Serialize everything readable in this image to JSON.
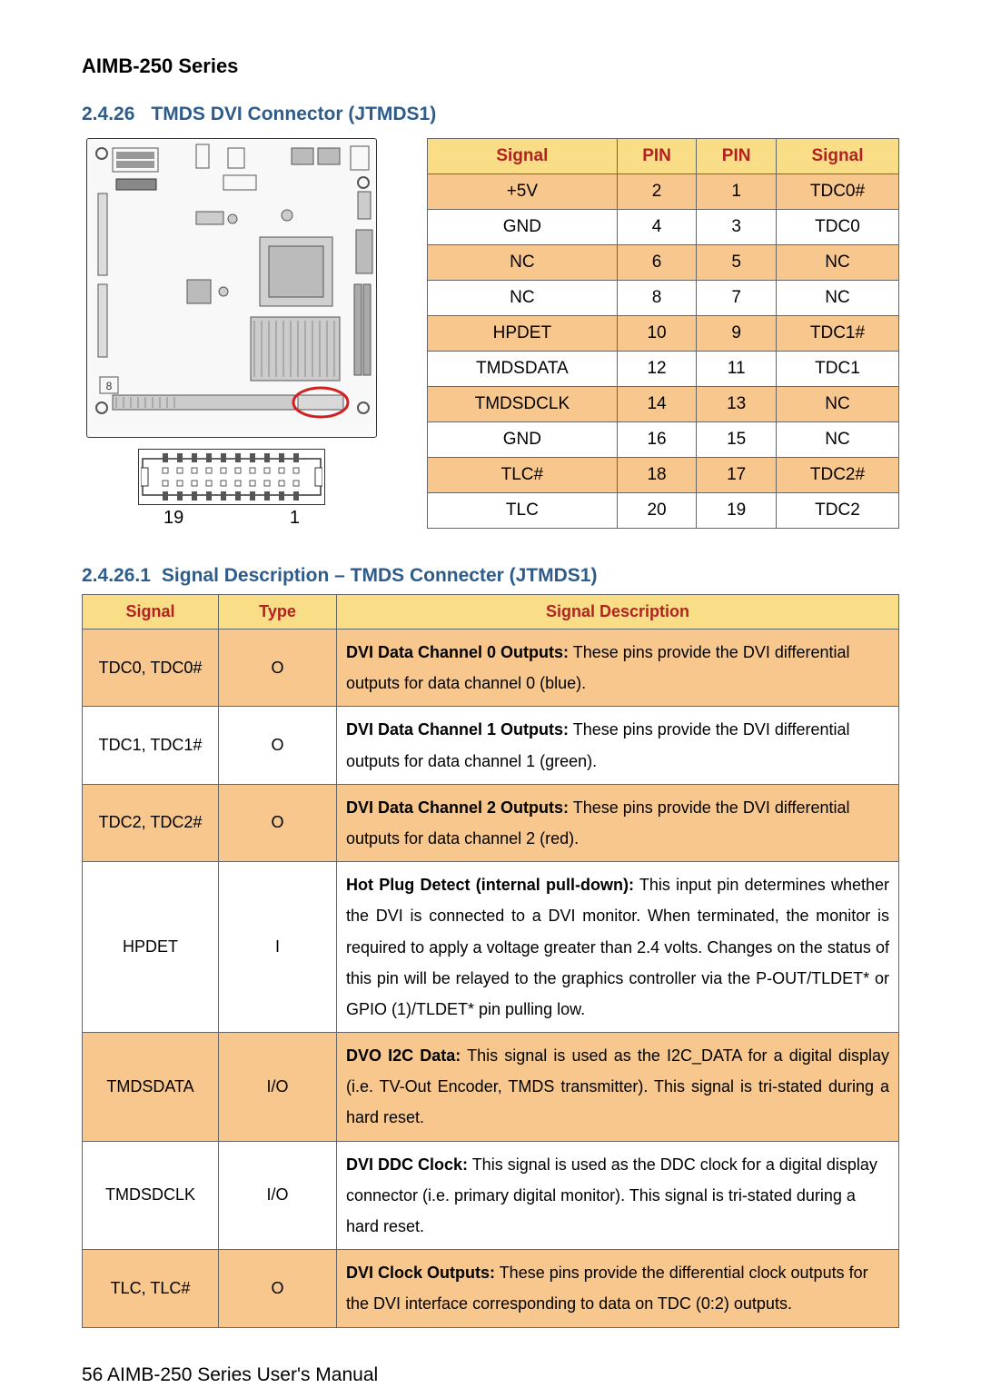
{
  "header": {
    "series_title": "AIMB-250 Series"
  },
  "section": {
    "number": "2.4.26",
    "title": "TMDS DVI Connector (JTMDS1)"
  },
  "connector_callout": {
    "left_num": "19",
    "right_num": "1"
  },
  "pin_table": {
    "headers": {
      "signal_l": "Signal",
      "pin_l": "PIN",
      "pin_r": "PIN",
      "signal_r": "Signal"
    },
    "rows": [
      {
        "sl": "+5V",
        "pl": "2",
        "pr": "1",
        "sr": "TDC0#",
        "shade": true
      },
      {
        "sl": "GND",
        "pl": "4",
        "pr": "3",
        "sr": "TDC0",
        "shade": false
      },
      {
        "sl": "NC",
        "pl": "6",
        "pr": "5",
        "sr": "NC",
        "shade": true
      },
      {
        "sl": "NC",
        "pl": "8",
        "pr": "7",
        "sr": "NC",
        "shade": false
      },
      {
        "sl": "HPDET",
        "pl": "10",
        "pr": "9",
        "sr": "TDC1#",
        "shade": true
      },
      {
        "sl": "TMDSDATA",
        "pl": "12",
        "pr": "11",
        "sr": "TDC1",
        "shade": false
      },
      {
        "sl": "TMDSDCLK",
        "pl": "14",
        "pr": "13",
        "sr": "NC",
        "shade": true
      },
      {
        "sl": "GND",
        "pl": "16",
        "pr": "15",
        "sr": "NC",
        "shade": false
      },
      {
        "sl": "TLC#",
        "pl": "18",
        "pr": "17",
        "sr": "TDC2#",
        "shade": true
      },
      {
        "sl": "TLC",
        "pl": "20",
        "pr": "19",
        "sr": "TDC2",
        "shade": false
      }
    ]
  },
  "sub_section": {
    "number": "2.4.26.1",
    "title": "Signal Description – TMDS Connecter (JTMDS1)"
  },
  "desc_table": {
    "headers": {
      "signal": "Signal",
      "type": "Type",
      "desc": "Signal Description"
    },
    "rows": [
      {
        "signal": "TDC0, TDC0#",
        "type": "O",
        "bold": "DVI Data Channel 0 Outputs:",
        "text": " These pins provide the DVI differential outputs for data channel 0 (blue).",
        "shade": true,
        "justify": false
      },
      {
        "signal": "TDC1, TDC1#",
        "type": "O",
        "bold": "DVI Data Channel 1 Outputs:",
        "text": " These pins provide the DVI differential outputs for data channel 1 (green).",
        "shade": false,
        "justify": false
      },
      {
        "signal": "TDC2, TDC2#",
        "type": "O",
        "bold": "DVI Data Channel 2 Outputs:",
        "text": " These pins provide the DVI differential outputs for data channel 2 (red).",
        "shade": true,
        "justify": false
      },
      {
        "signal": "HPDET",
        "type": "I",
        "bold": "Hot Plug Detect (internal pull-down):",
        "text": " This input pin determines whether the DVI is connected to a DVI monitor.  When terminated, the monitor is required to apply a voltage greater than 2.4 volts. Changes on the status of this pin will be relayed to the graphics controller via the P-OUT/TLDET* or GPIO (1)/TLDET* pin pulling low.",
        "shade": false,
        "justify": true
      },
      {
        "signal": "TMDSDATA",
        "type": "I/O",
        "bold": "DVO I2C Data:",
        "text": " This signal is used as the I2C_DATA for a digital display (i.e. TV-Out Encoder, TMDS transmitter). This signal is tri-stated during a hard reset.",
        "shade": true,
        "justify": true
      },
      {
        "signal": "TMDSDCLK",
        "type": "I/O",
        "bold": "DVI DDC Clock:",
        "text": " This signal is used as the DDC clock for a digital display connector (i.e. primary digital monitor). This signal is tri-stated during a hard reset.",
        "shade": false,
        "justify": false
      },
      {
        "signal": "TLC, TLC#",
        "type": "O",
        "bold": "DVI Clock Outputs:",
        "text": " These pins provide the differential clock outputs for the DVI interface corresponding to data on TDC (0:2) outputs.",
        "shade": true,
        "justify": false
      }
    ]
  },
  "footer": {
    "page_num": "56",
    "text": " AIMB-250 Series User's Manual"
  },
  "styling": {
    "page_bg": "#ffffff",
    "header_yellow": "#f9de87",
    "header_red": "#b22222",
    "shade_orange": "#f7c78e",
    "heading_blue": "#2e5c8a",
    "border_gray": "#666666",
    "circle_red": "#d02020"
  }
}
